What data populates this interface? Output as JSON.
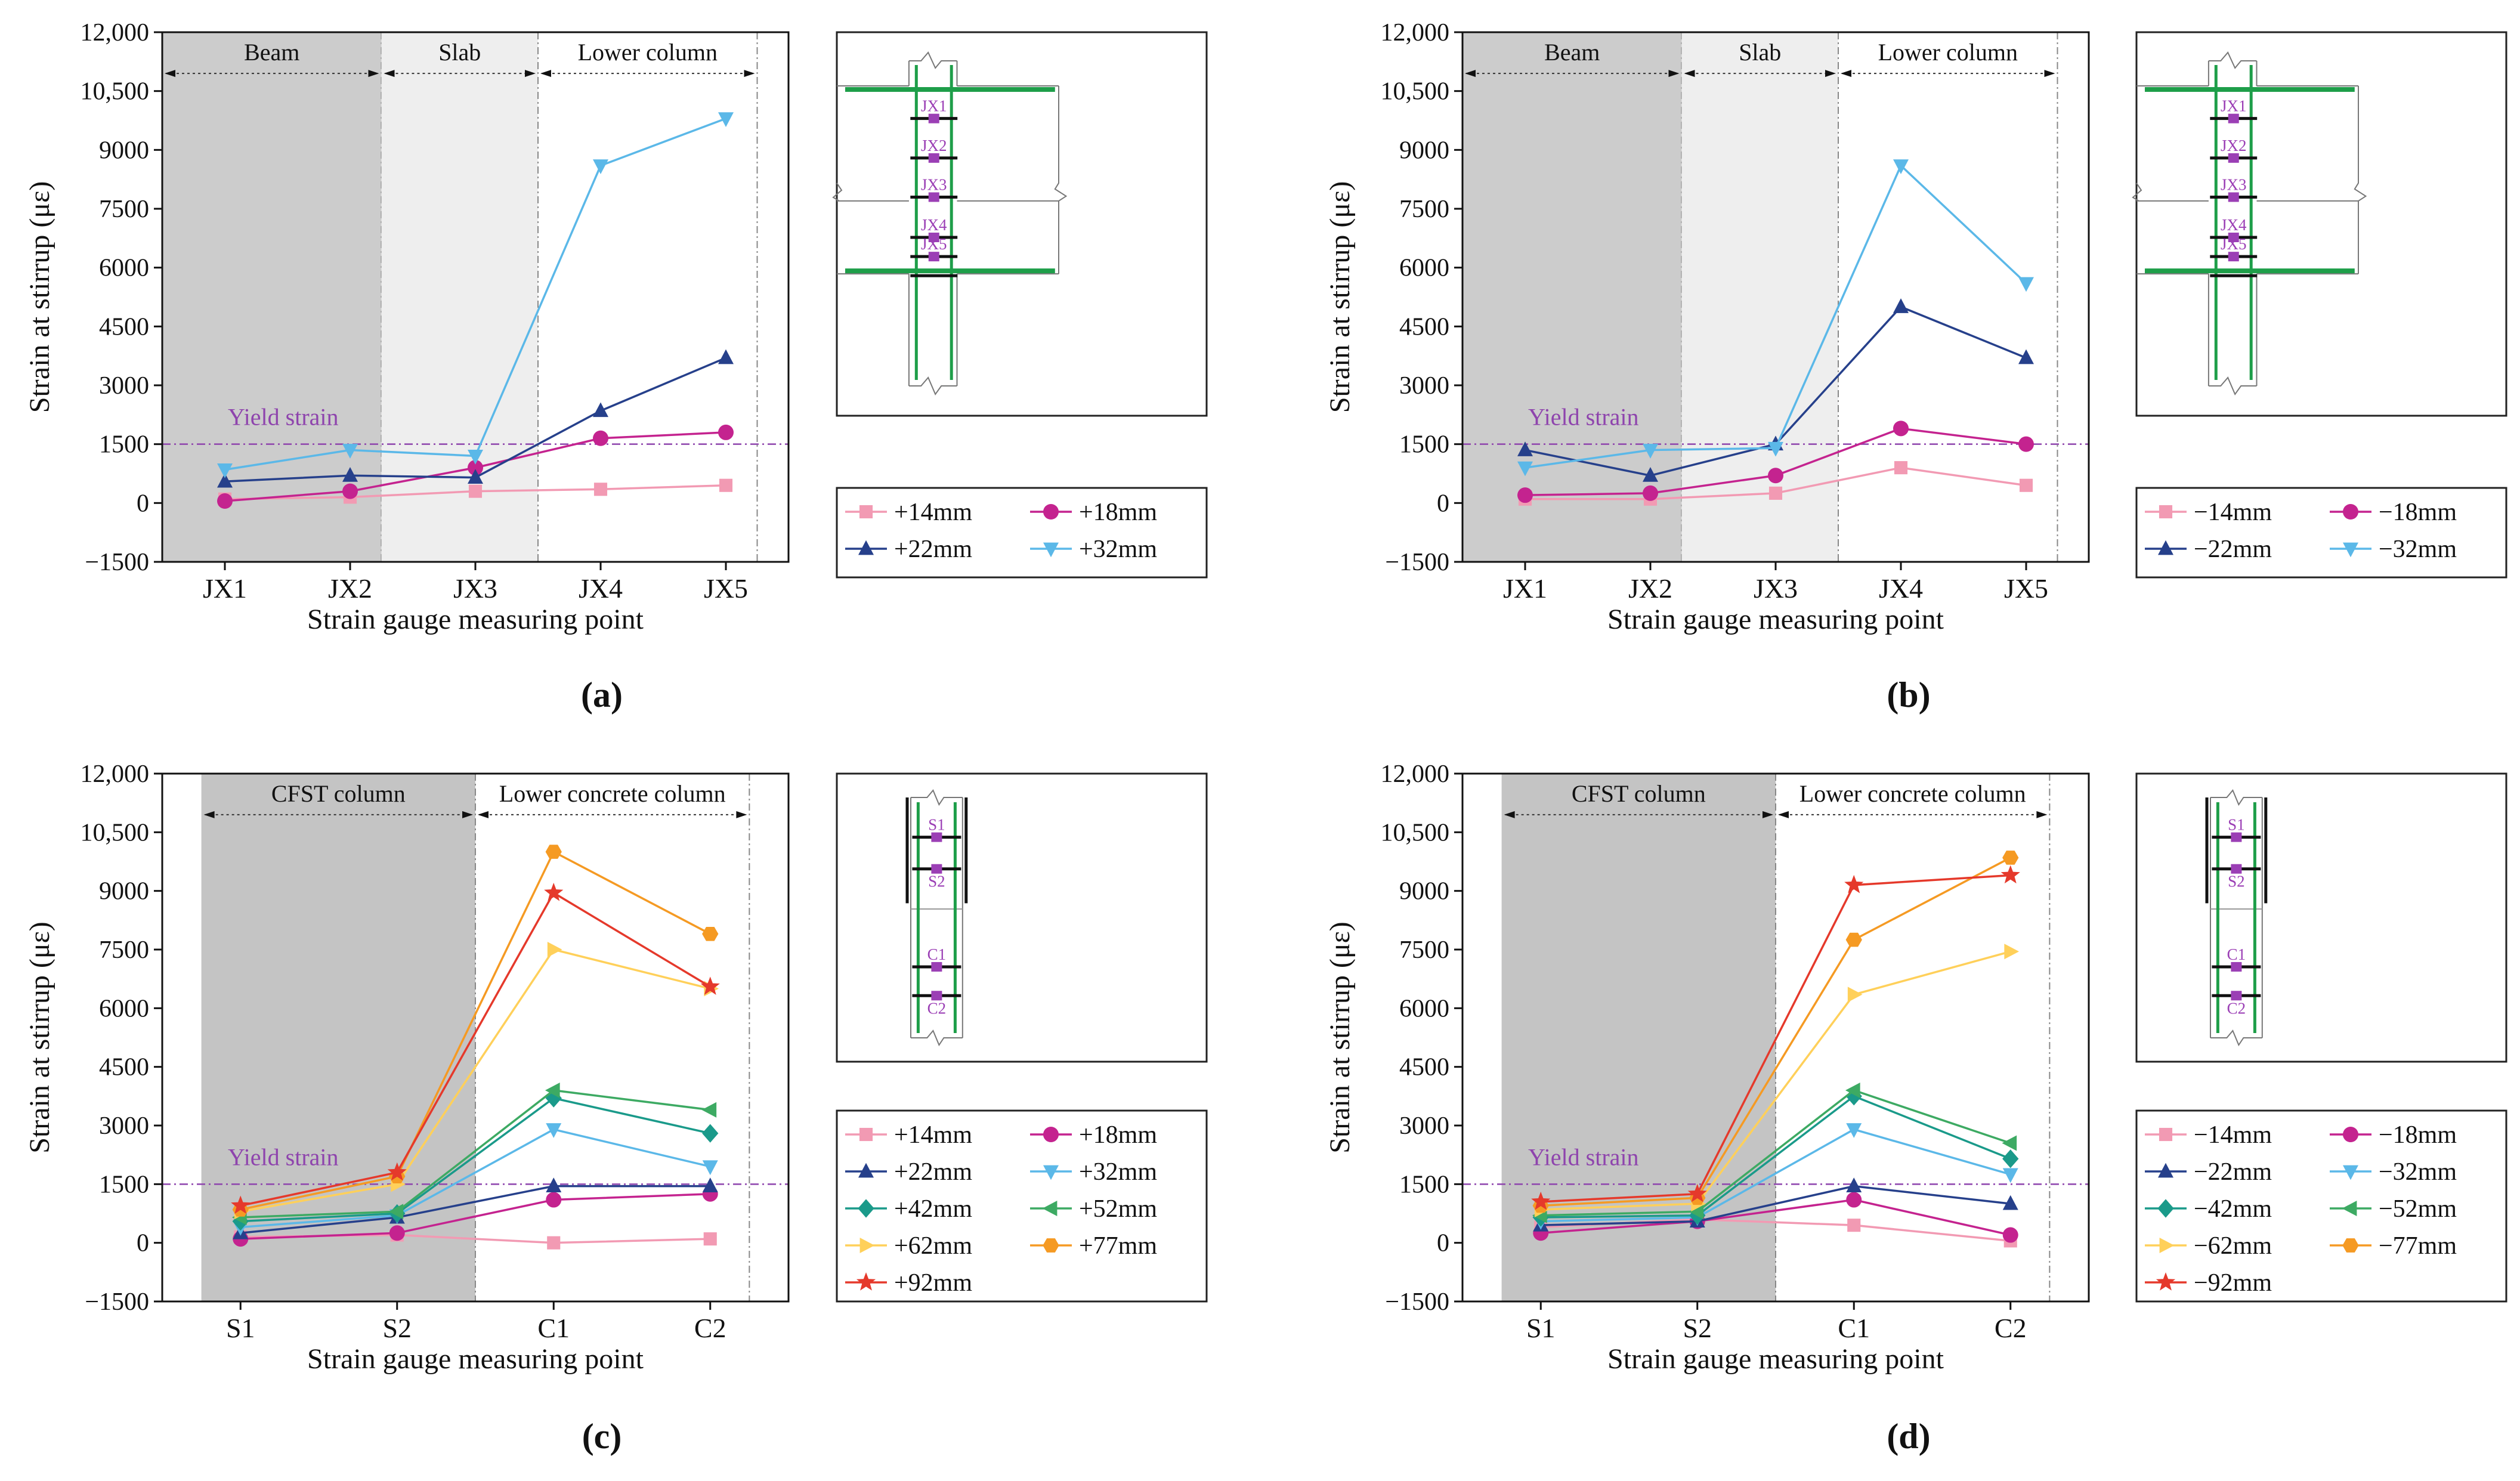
{
  "legend_symbols": {
    "square": "square",
    "circle": "circle",
    "up": "triangle-up",
    "down": "triangle-down",
    "diamond": "diamond",
    "left": "triangle-left",
    "right": "triangle-right",
    "hexagon": "hexagon",
    "star": "star"
  },
  "yield_strain": 1500,
  "chart_data": [
    {
      "type": "line",
      "panel_label": "(a)",
      "title": "",
      "xlabel": "Strain gauge measuring point",
      "ylabel": "Strain at stirrup (με)",
      "categories": [
        "JX1",
        "JX2",
        "JX3",
        "JX4",
        "JX5"
      ],
      "ylim": [
        -1500,
        12000
      ],
      "yticks": [
        -1500,
        0,
        1500,
        3000,
        4500,
        6000,
        7500,
        9000,
        10500,
        12000
      ],
      "ytick_labels": [
        "−1500",
        "0",
        "1500",
        "3000",
        "4500",
        "6000",
        "7500",
        "9000",
        "10,500",
        "12,000"
      ],
      "yield_label": "Yield strain",
      "regions": [
        {
          "label": "Beam",
          "from": -0.5,
          "to": 1.25,
          "shade": "#cccccc"
        },
        {
          "label": "Slab",
          "from": 1.25,
          "to": 2.5,
          "shade": "#eeeeee"
        },
        {
          "label": "Lower column",
          "from": 2.5,
          "to": 4.25,
          "shade": "none"
        }
      ],
      "series": [
        {
          "name": "+14mm",
          "color": "#f29ab3",
          "marker": "square",
          "values": [
            100,
            150,
            300,
            350,
            450
          ]
        },
        {
          "name": "+18mm",
          "color": "#c4238f",
          "marker": "circle",
          "values": [
            50,
            300,
            900,
            1650,
            1800
          ]
        },
        {
          "name": "+22mm",
          "color": "#26408b",
          "marker": "up",
          "values": [
            550,
            700,
            650,
            2350,
            3700
          ]
        },
        {
          "name": "+32mm",
          "color": "#5bb8e8",
          "marker": "down",
          "values": [
            850,
            1350,
            1200,
            8600,
            9800
          ]
        }
      ],
      "diagram": {
        "kind": "beam",
        "labels": [
          "JX1",
          "JX2",
          "JX3",
          "JX4",
          "JX5"
        ]
      }
    },
    {
      "type": "line",
      "panel_label": "(b)",
      "title": "",
      "xlabel": "Strain gauge measuring point",
      "ylabel": "Strain at stirrup (με)",
      "categories": [
        "JX1",
        "JX2",
        "JX3",
        "JX4",
        "JX5"
      ],
      "ylim": [
        -1500,
        12000
      ],
      "yticks": [
        -1500,
        0,
        1500,
        3000,
        4500,
        6000,
        7500,
        9000,
        10500,
        12000
      ],
      "ytick_labels": [
        "−1500",
        "0",
        "1500",
        "3000",
        "4500",
        "6000",
        "7500",
        "9000",
        "10,500",
        "12,000"
      ],
      "yield_label": "Yield strain",
      "regions": [
        {
          "label": "Beam",
          "from": -0.5,
          "to": 1.25,
          "shade": "#cccccc"
        },
        {
          "label": "Slab",
          "from": 1.25,
          "to": 2.5,
          "shade": "#eeeeee"
        },
        {
          "label": "Lower column",
          "from": 2.5,
          "to": 4.25,
          "shade": "none"
        }
      ],
      "series": [
        {
          "name": "−14mm",
          "color": "#f29ab3",
          "marker": "square",
          "values": [
            100,
            100,
            250,
            900,
            450
          ]
        },
        {
          "name": "−18mm",
          "color": "#c4238f",
          "marker": "circle",
          "values": [
            200,
            250,
            700,
            1900,
            1500
          ]
        },
        {
          "name": "−22mm",
          "color": "#26408b",
          "marker": "up",
          "values": [
            1350,
            700,
            1500,
            5000,
            3700
          ]
        },
        {
          "name": "−32mm",
          "color": "#5bb8e8",
          "marker": "down",
          "values": [
            900,
            1350,
            1400,
            8600,
            5600
          ]
        }
      ],
      "diagram": {
        "kind": "beam",
        "labels": [
          "JX1",
          "JX2",
          "JX3",
          "JX4",
          "JX5"
        ]
      }
    },
    {
      "type": "line",
      "panel_label": "(c)",
      "title": "",
      "xlabel": "Strain gauge measuring point",
      "ylabel": "Strain at stirrup (με)",
      "categories": [
        "S1",
        "S2",
        "C1",
        "C2"
      ],
      "ylim": [
        -1500,
        12000
      ],
      "yticks": [
        -1500,
        0,
        1500,
        3000,
        4500,
        6000,
        7500,
        9000,
        10500,
        12000
      ],
      "ytick_labels": [
        "−1500",
        "0",
        "1500",
        "3000",
        "4500",
        "6000",
        "7500",
        "9000",
        "10,500",
        "12,000"
      ],
      "yield_label": "Yield strain",
      "regions": [
        {
          "label": "CFST column",
          "from": -0.25,
          "to": 1.5,
          "shade": "#c4c4c4"
        },
        {
          "label": "Lower concrete column",
          "from": 1.5,
          "to": 3.25,
          "shade": "none"
        }
      ],
      "series": [
        {
          "name": "+14mm",
          "color": "#f29ab3",
          "marker": "square",
          "values": [
            150,
            200,
            0,
            100
          ]
        },
        {
          "name": "+18mm",
          "color": "#c4238f",
          "marker": "circle",
          "values": [
            100,
            250,
            1100,
            1250
          ]
        },
        {
          "name": "+22mm",
          "color": "#26408b",
          "marker": "up",
          "values": [
            250,
            650,
            1450,
            1450
          ]
        },
        {
          "name": "+32mm",
          "color": "#5bb8e8",
          "marker": "down",
          "values": [
            400,
            700,
            2900,
            1950
          ]
        },
        {
          "name": "+42mm",
          "color": "#1a9a8a",
          "marker": "diamond",
          "values": [
            550,
            750,
            3700,
            2800
          ]
        },
        {
          "name": "+52mm",
          "color": "#3daa63",
          "marker": "left",
          "values": [
            650,
            800,
            3900,
            3400
          ]
        },
        {
          "name": "+62mm",
          "color": "#ffd05a",
          "marker": "right",
          "values": [
            800,
            1500,
            7500,
            6500
          ]
        },
        {
          "name": "+77mm",
          "color": "#f59a23",
          "marker": "hexagon",
          "values": [
            850,
            1700,
            10000,
            7900
          ]
        },
        {
          "name": "+92mm",
          "color": "#e5392b",
          "marker": "star",
          "values": [
            950,
            1800,
            8950,
            6550
          ]
        }
      ],
      "diagram": {
        "kind": "column",
        "labels": [
          "S1",
          "S2",
          "C1",
          "C2"
        ]
      }
    },
    {
      "type": "line",
      "panel_label": "(d)",
      "title": "",
      "xlabel": "Strain gauge measuring point",
      "ylabel": "Strain at stirrup (με)",
      "categories": [
        "S1",
        "S2",
        "C1",
        "C2"
      ],
      "ylim": [
        -1500,
        12000
      ],
      "yticks": [
        -1500,
        0,
        1500,
        3000,
        4500,
        6000,
        7500,
        9000,
        10500,
        12000
      ],
      "ytick_labels": [
        "−1500",
        "0",
        "1500",
        "3000",
        "4500",
        "6000",
        "7500",
        "9000",
        "10,500",
        "12,000"
      ],
      "yield_label": "Yield strain",
      "regions": [
        {
          "label": "CFST column",
          "from": -0.25,
          "to": 1.5,
          "shade": "#c4c4c4"
        },
        {
          "label": "Lower concrete column",
          "from": 1.5,
          "to": 3.25,
          "shade": "none"
        }
      ],
      "series": [
        {
          "name": "−14mm",
          "color": "#f29ab3",
          "marker": "square",
          "values": [
            400,
            600,
            450,
            50
          ]
        },
        {
          "name": "−18mm",
          "color": "#c4238f",
          "marker": "circle",
          "values": [
            250,
            550,
            1100,
            200
          ]
        },
        {
          "name": "−22mm",
          "color": "#26408b",
          "marker": "up",
          "values": [
            450,
            550,
            1450,
            1000
          ]
        },
        {
          "name": "−32mm",
          "color": "#5bb8e8",
          "marker": "down",
          "values": [
            550,
            650,
            2900,
            1750
          ]
        },
        {
          "name": "−42mm",
          "color": "#1a9a8a",
          "marker": "diamond",
          "values": [
            650,
            700,
            3750,
            2150
          ]
        },
        {
          "name": "−52mm",
          "color": "#3daa63",
          "marker": "left",
          "values": [
            700,
            800,
            3900,
            2550
          ]
        },
        {
          "name": "−62mm",
          "color": "#ffd05a",
          "marker": "right",
          "values": [
            850,
            1000,
            6350,
            7450
          ]
        },
        {
          "name": "−77mm",
          "color": "#f59a23",
          "marker": "hexagon",
          "values": [
            950,
            1150,
            7750,
            9850
          ]
        },
        {
          "name": "−92mm",
          "color": "#e5392b",
          "marker": "star",
          "values": [
            1050,
            1250,
            9150,
            9400
          ]
        }
      ],
      "diagram": {
        "kind": "column",
        "labels": [
          "S1",
          "S2",
          "C1",
          "C2"
        ]
      }
    }
  ]
}
